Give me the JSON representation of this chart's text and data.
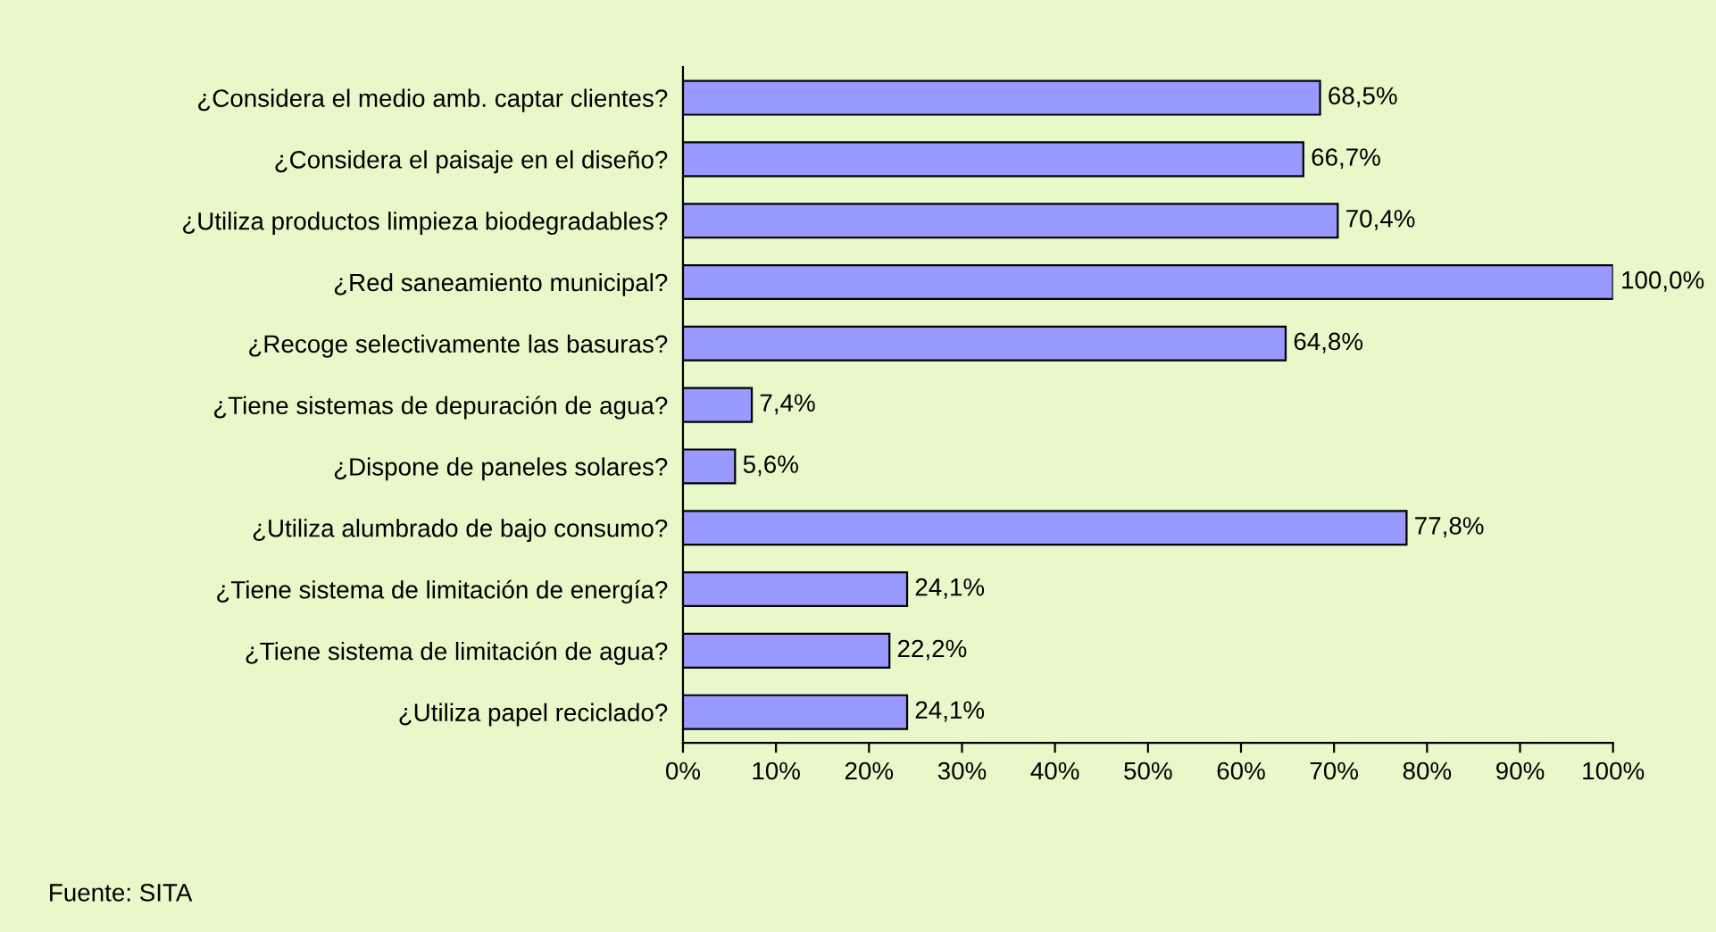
{
  "chart_data": {
    "type": "bar",
    "orientation": "horizontal",
    "categories": [
      "¿Considera el medio amb. captar clientes?",
      "¿Considera el paisaje en el diseño?",
      "¿Utiliza productos limpieza biodegradables?",
      "¿Red saneamiento municipal?",
      "¿Recoge selectivamente las basuras?",
      "¿Tiene sistemas de depuración de agua?",
      "¿Dispone de paneles solares?",
      "¿Utiliza alumbrado de bajo consumo?",
      "¿Tiene sistema de limitación de energía?",
      "¿Tiene sistema de limitación de agua?",
      "¿Utiliza papel reciclado?"
    ],
    "values": [
      68.5,
      66.7,
      70.4,
      100.0,
      64.8,
      7.4,
      5.6,
      77.8,
      24.1,
      22.2,
      24.1
    ],
    "value_labels": [
      "68,5%",
      "66,7%",
      "70,4%",
      "100,0%",
      "64,8%",
      "7,4%",
      "5,6%",
      "77,8%",
      "24,1%",
      "22,2%",
      "24,1%"
    ],
    "color": "#9999ff",
    "xlim": [
      0,
      100
    ],
    "xticks": [
      {
        "value": 0,
        "label": "0%"
      },
      {
        "value": 10,
        "label": "10%"
      },
      {
        "value": 20,
        "label": "20%"
      },
      {
        "value": 30,
        "label": "30%"
      },
      {
        "value": 40,
        "label": "40%"
      },
      {
        "value": 50,
        "label": "50%"
      },
      {
        "value": 60,
        "label": "60%"
      },
      {
        "value": 70,
        "label": "70%"
      },
      {
        "value": 80,
        "label": "80%"
      },
      {
        "value": 90,
        "label": "90%"
      },
      {
        "value": 100,
        "label": "100%"
      }
    ],
    "grid": false,
    "annotations": [
      "Fuente: SITA"
    ]
  }
}
